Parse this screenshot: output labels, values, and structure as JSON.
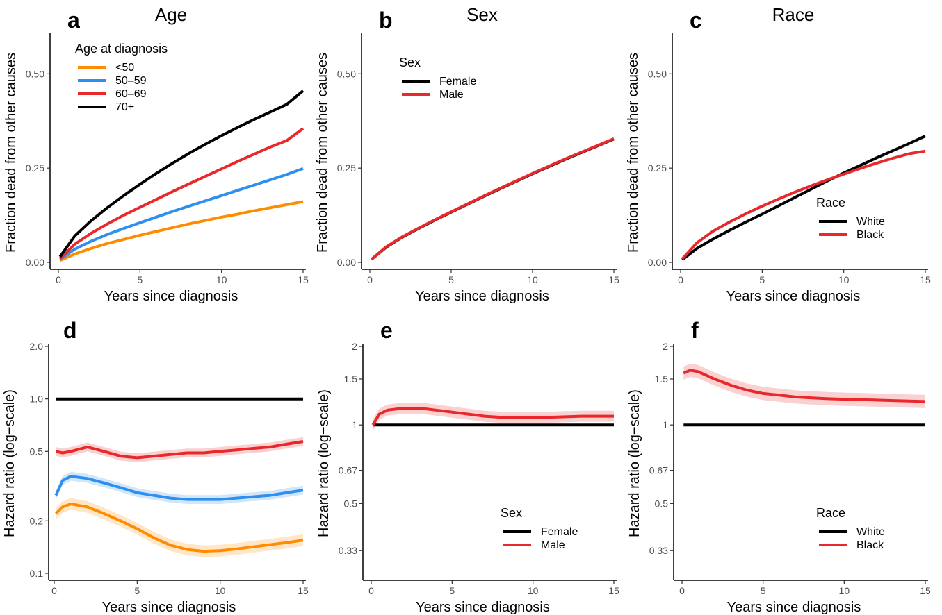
{
  "colors": {
    "orange": "#FF8C00",
    "blue": "#2E8FEF",
    "red": "#E8282B",
    "black": "#000000",
    "axis": "#000000",
    "tick_text": "#4d4d4d"
  },
  "chart_data": [
    {
      "id": "a",
      "type": "line",
      "letter": "a",
      "title": "Age",
      "xlabel": "Years since diagnosis",
      "ylabel": "Fraction dead from other causes",
      "xlim": [
        0,
        15
      ],
      "ylim": [
        0,
        0.6
      ],
      "xticks": [
        0,
        5,
        10,
        15
      ],
      "xtick_labels": [
        "0",
        "5",
        "10",
        "15"
      ],
      "yticks": [
        0,
        0.25,
        0.5
      ],
      "ytick_labels": [
        "0.00",
        "0.25",
        "0.50"
      ],
      "yscale": "linear",
      "legend": {
        "title": "Age at diagnosis",
        "position": "top-left"
      },
      "series": [
        {
          "name": "<50",
          "color": "#FF8C00",
          "x": [
            0.1,
            1,
            2,
            3,
            4,
            5,
            6,
            7,
            8,
            9,
            10,
            11,
            12,
            13,
            14,
            15
          ],
          "y": [
            0.005,
            0.022,
            0.037,
            0.05,
            0.061,
            0.072,
            0.082,
            0.092,
            0.102,
            0.111,
            0.12,
            0.128,
            0.137,
            0.145,
            0.153,
            0.161
          ]
        },
        {
          "name": "50–59",
          "color": "#2E8FEF",
          "x": [
            0.1,
            1,
            2,
            3,
            4,
            5,
            6,
            7,
            8,
            9,
            10,
            11,
            12,
            13,
            14,
            15
          ],
          "y": [
            0.008,
            0.035,
            0.056,
            0.074,
            0.09,
            0.105,
            0.12,
            0.135,
            0.149,
            0.163,
            0.177,
            0.191,
            0.205,
            0.219,
            0.233,
            0.249
          ]
        },
        {
          "name": "60–69",
          "color": "#E8282B",
          "x": [
            0.1,
            1,
            2,
            3,
            4,
            5,
            6,
            7,
            8,
            9,
            10,
            11,
            12,
            13,
            14,
            15
          ],
          "y": [
            0.01,
            0.048,
            0.077,
            0.102,
            0.125,
            0.146,
            0.167,
            0.188,
            0.208,
            0.228,
            0.248,
            0.268,
            0.287,
            0.306,
            0.323,
            0.355
          ]
        },
        {
          "name": "70+",
          "color": "#000000",
          "x": [
            0.1,
            1,
            2,
            3,
            4,
            5,
            6,
            7,
            8,
            9,
            10,
            11,
            12,
            13,
            14,
            15
          ],
          "y": [
            0.015,
            0.07,
            0.11,
            0.145,
            0.177,
            0.207,
            0.236,
            0.263,
            0.289,
            0.313,
            0.336,
            0.358,
            0.379,
            0.399,
            0.419,
            0.455
          ]
        }
      ]
    },
    {
      "id": "b",
      "type": "line",
      "letter": "b",
      "title": "Sex",
      "xlabel": "Years since diagnosis",
      "ylabel": "Fraction dead from other causes",
      "xlim": [
        0,
        15
      ],
      "ylim": [
        0,
        0.6
      ],
      "xticks": [
        0,
        5,
        10,
        15
      ],
      "xtick_labels": [
        "0",
        "5",
        "10",
        "15"
      ],
      "yticks": [
        0,
        0.25,
        0.5
      ],
      "ytick_labels": [
        "0.00",
        "0.25",
        "0.50"
      ],
      "yscale": "linear",
      "legend": {
        "title": "Sex",
        "position": "top-left"
      },
      "series": [
        {
          "name": "Female",
          "color": "#000000",
          "x": [
            0.1,
            1,
            2,
            3,
            4,
            5,
            6,
            7,
            8,
            9,
            10,
            11,
            12,
            13,
            14,
            15
          ],
          "y": [
            0.008,
            0.04,
            0.067,
            0.09,
            0.112,
            0.133,
            0.154,
            0.175,
            0.195,
            0.215,
            0.235,
            0.254,
            0.273,
            0.291,
            0.309,
            0.327
          ]
        },
        {
          "name": "Male",
          "color": "#E8282B",
          "x": [
            0.1,
            1,
            2,
            3,
            4,
            5,
            6,
            7,
            8,
            9,
            10,
            11,
            12,
            13,
            14,
            15
          ],
          "y": [
            0.008,
            0.041,
            0.068,
            0.091,
            0.113,
            0.134,
            0.155,
            0.176,
            0.196,
            0.216,
            0.236,
            0.255,
            0.274,
            0.292,
            0.31,
            0.328
          ]
        }
      ]
    },
    {
      "id": "c",
      "type": "line",
      "letter": "c",
      "title": "Race",
      "xlabel": "Years since diagnosis",
      "ylabel": "Fraction dead from other causes",
      "xlim": [
        0,
        15
      ],
      "ylim": [
        0,
        0.6
      ],
      "xticks": [
        0,
        5,
        10,
        15
      ],
      "xtick_labels": [
        "0",
        "5",
        "10",
        "15"
      ],
      "yticks": [
        0,
        0.25,
        0.5
      ],
      "ytick_labels": [
        "0.00",
        "0.25",
        "0.50"
      ],
      "yscale": "linear",
      "legend": {
        "title": "Race",
        "position": "bottom-right"
      },
      "series": [
        {
          "name": "White",
          "color": "#000000",
          "x": [
            0.1,
            1,
            2,
            3,
            4,
            5,
            6,
            7,
            8,
            9,
            10,
            11,
            12,
            13,
            14,
            15
          ],
          "y": [
            0.007,
            0.037,
            0.062,
            0.085,
            0.107,
            0.128,
            0.15,
            0.172,
            0.194,
            0.216,
            0.237,
            0.257,
            0.277,
            0.296,
            0.315,
            0.335
          ]
        },
        {
          "name": "Black",
          "color": "#E8282B",
          "x": [
            0.1,
            1,
            2,
            3,
            4,
            5,
            6,
            7,
            8,
            9,
            10,
            11,
            12,
            13,
            14,
            15
          ],
          "y": [
            0.009,
            0.052,
            0.083,
            0.107,
            0.129,
            0.149,
            0.168,
            0.186,
            0.203,
            0.219,
            0.234,
            0.249,
            0.263,
            0.276,
            0.288,
            0.295
          ]
        }
      ]
    },
    {
      "id": "d",
      "type": "line",
      "letter": "d",
      "title": "",
      "xlabel": "Years since diagnosis",
      "ylabel": "Hazard ratio (log−scale)",
      "xlim": [
        0,
        15
      ],
      "ylim": [
        0.1,
        2.0
      ],
      "xticks": [
        0,
        5,
        10,
        15
      ],
      "xtick_labels": [
        "0",
        "5",
        "10",
        "15"
      ],
      "yticks": [
        0.1,
        0.2,
        0.5,
        1.0,
        2.0
      ],
      "ytick_labels": [
        "0.1",
        "0.2",
        "0.5",
        "1.0",
        "2.0"
      ],
      "yscale": "log",
      "series": [
        {
          "name": "",
          "color": "#000000",
          "x": [
            0.1,
            15
          ],
          "y": [
            1.0,
            1.0
          ],
          "band": 0
        },
        {
          "name": "",
          "color": "#E8282B",
          "x": [
            0.1,
            0.5,
            1,
            2,
            3,
            4,
            5,
            6,
            7,
            8,
            9,
            10,
            11,
            12,
            13,
            14,
            15
          ],
          "y": [
            0.5,
            0.49,
            0.5,
            0.53,
            0.5,
            0.47,
            0.46,
            0.47,
            0.48,
            0.49,
            0.49,
            0.5,
            0.51,
            0.52,
            0.53,
            0.55,
            0.57
          ],
          "band": 0.06
        },
        {
          "name": "",
          "color": "#2E8FEF",
          "x": [
            0.1,
            0.5,
            1,
            2,
            3,
            4,
            5,
            6,
            7,
            8,
            9,
            10,
            11,
            12,
            13,
            14,
            15
          ],
          "y": [
            0.28,
            0.34,
            0.36,
            0.35,
            0.33,
            0.31,
            0.29,
            0.28,
            0.27,
            0.265,
            0.265,
            0.265,
            0.27,
            0.275,
            0.28,
            0.29,
            0.3
          ],
          "band": 0.06
        },
        {
          "name": "",
          "color": "#FF8C00",
          "x": [
            0.1,
            0.5,
            1,
            2,
            3,
            4,
            5,
            6,
            7,
            8,
            9,
            10,
            11,
            12,
            13,
            14,
            15
          ],
          "y": [
            0.22,
            0.24,
            0.25,
            0.24,
            0.22,
            0.2,
            0.18,
            0.16,
            0.145,
            0.137,
            0.134,
            0.135,
            0.138,
            0.142,
            0.146,
            0.15,
            0.155
          ],
          "band": 0.08
        }
      ]
    },
    {
      "id": "e",
      "type": "line",
      "letter": "e",
      "title": "",
      "xlabel": "Years since diagnosis",
      "ylabel": "Hazard ratio (log−scale)",
      "xlim": [
        0,
        15
      ],
      "ylim": [
        0.27,
        2.0
      ],
      "xticks": [
        0,
        5,
        10,
        15
      ],
      "xtick_labels": [
        "0",
        "5",
        "10",
        "15"
      ],
      "yticks": [
        0.33,
        0.5,
        0.67,
        1,
        1.5,
        2
      ],
      "ytick_labels": [
        "0.33",
        "0.5",
        "0.67",
        "1",
        "1.5",
        "2"
      ],
      "yscale": "log",
      "legend": {
        "title": "Sex",
        "position": "bottom-right"
      },
      "series": [
        {
          "name": "Female",
          "color": "#000000",
          "x": [
            0.1,
            15
          ],
          "y": [
            1,
            1
          ],
          "band": 0
        },
        {
          "name": "Male",
          "color": "#E8282B",
          "x": [
            0.1,
            0.5,
            1,
            2,
            3,
            4,
            5,
            6,
            7,
            8,
            9,
            10,
            11,
            12,
            13,
            14,
            15
          ],
          "y": [
            1.0,
            1.1,
            1.14,
            1.16,
            1.16,
            1.14,
            1.12,
            1.1,
            1.08,
            1.07,
            1.07,
            1.07,
            1.07,
            1.075,
            1.08,
            1.08,
            1.08
          ],
          "band": 0.05
        }
      ]
    },
    {
      "id": "f",
      "type": "line",
      "letter": "f",
      "title": "",
      "xlabel": "Years since diagnosis",
      "ylabel": "Hazard ratio (log−scale)",
      "xlim": [
        0,
        15
      ],
      "ylim": [
        0.27,
        2.0
      ],
      "xticks": [
        0,
        5,
        10,
        15
      ],
      "xtick_labels": [
        "0",
        "5",
        "10",
        "15"
      ],
      "yticks": [
        0.33,
        0.5,
        0.67,
        1,
        1.5,
        2
      ],
      "ytick_labels": [
        "0.33",
        "0.5",
        "0.67",
        "1",
        "1.5",
        "2"
      ],
      "yscale": "log",
      "legend": {
        "title": "Race",
        "position": "bottom-right"
      },
      "series": [
        {
          "name": "White",
          "color": "#000000",
          "x": [
            0.1,
            15
          ],
          "y": [
            1,
            1
          ],
          "band": 0
        },
        {
          "name": "Black",
          "color": "#E8282B",
          "x": [
            0.1,
            0.5,
            1,
            2,
            3,
            4,
            5,
            6,
            7,
            8,
            9,
            10,
            11,
            12,
            13,
            14,
            15
          ],
          "y": [
            1.58,
            1.62,
            1.6,
            1.5,
            1.42,
            1.36,
            1.32,
            1.3,
            1.28,
            1.27,
            1.26,
            1.255,
            1.25,
            1.245,
            1.24,
            1.235,
            1.23
          ],
          "band": 0.06
        }
      ]
    }
  ]
}
